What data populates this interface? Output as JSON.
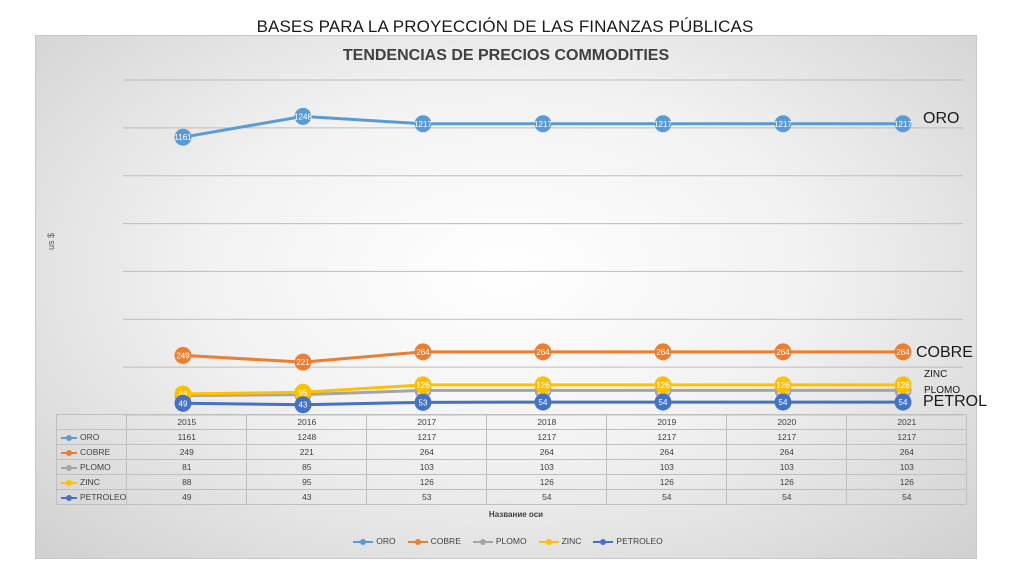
{
  "slide_title": "BASES PARA LA PROYECCIÓN DE LAS FINANZAS PÚBLICAS",
  "chart_data": {
    "type": "line",
    "title": "TENDENCIAS DE PRECIOS COMMODITIES",
    "ylabel": "us $",
    "xlabel": "Название оси",
    "categories": [
      "2015",
      "2016",
      "2017",
      "2018",
      "2019",
      "2020",
      "2021"
    ],
    "series": [
      {
        "name": "ORO",
        "color": "#5b9bd5",
        "values": [
          1161,
          1248,
          1217,
          1217,
          1217,
          1217,
          1217
        ]
      },
      {
        "name": "COBRE",
        "color": "#ed7d31",
        "values": [
          249,
          221,
          264,
          264,
          264,
          264,
          264
        ]
      },
      {
        "name": "PLOMO",
        "color": "#a5a5a5",
        "values": [
          81,
          85,
          103,
          103,
          103,
          103,
          103
        ]
      },
      {
        "name": "ZINC",
        "color": "#ffc000",
        "values": [
          88,
          95,
          126,
          126,
          126,
          126,
          126
        ]
      },
      {
        "name": "PETROLEO",
        "color": "#4472c4",
        "values": [
          49,
          43,
          53,
          54,
          54,
          54,
          54
        ]
      }
    ],
    "ylim": [
      0,
      1400
    ],
    "grid": true,
    "data_labels": true,
    "data_table": true,
    "legend_position": "bottom",
    "side_labels": [
      "ORO",
      "COBRE",
      "ZINC",
      "PLOMO",
      "PETROL"
    ]
  }
}
